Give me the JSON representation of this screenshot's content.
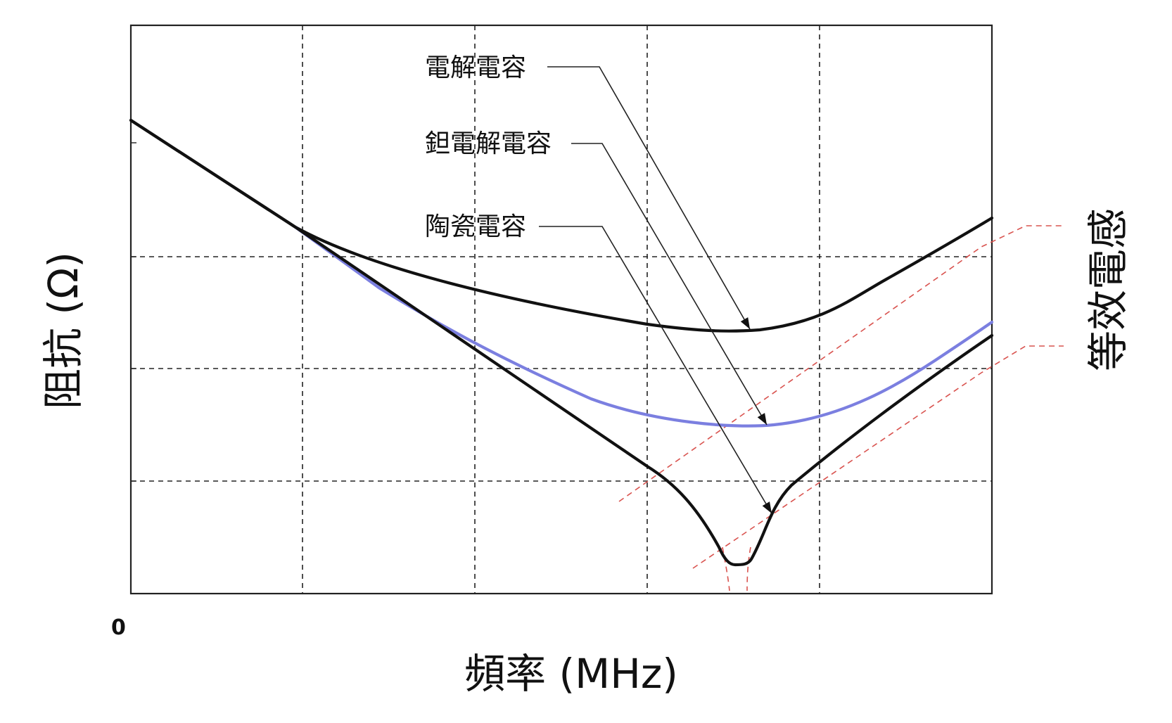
{
  "chart_data": {
    "type": "line",
    "title": "",
    "xlabel": "頻率 (MHz)",
    "ylabel": "阻抗 (Ω)",
    "secondary_label": "等效電感",
    "x_tick_labels": [
      "0"
    ],
    "grid": "dashed, 4 vertical × 3 horizontal",
    "legend": "none (arrow-pointer annotations, top-center)",
    "scale": "log-log, unlabeled",
    "series": [
      {
        "name": "電解電容",
        "color": "#111111"
      },
      {
        "name": "鉭電解電容",
        "color": "#7b7fe0"
      },
      {
        "name": "陶瓷電容",
        "color": "#111111"
      }
    ],
    "reference_lines": {
      "style": "dashed",
      "color": "#d9534f"
    }
  }
}
